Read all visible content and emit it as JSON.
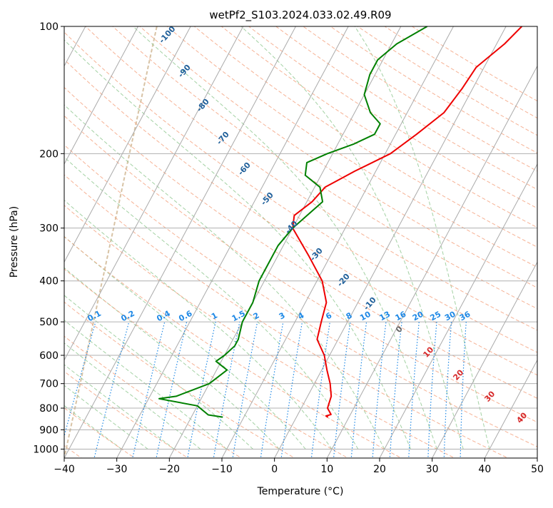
{
  "chart_data": {
    "type": "line",
    "subtype": "skew-t log-p diagram",
    "title": "wetPf2_S103.2024.033.02.49.R09",
    "xlabel": "Temperature (°C)",
    "ylabel": "Pressure (hPa)",
    "xlim": [
      -40,
      50
    ],
    "ylim": [
      1050,
      100
    ],
    "y_scale": "log",
    "grid": true,
    "x_ticks": [
      "−40",
      "−30",
      "−20",
      "−10",
      "0",
      "10",
      "20",
      "30",
      "40",
      "50"
    ],
    "y_ticks": [
      "100",
      "200",
      "300",
      "400",
      "500",
      "600",
      "700",
      "800",
      "900",
      "1000"
    ],
    "series": [
      {
        "role": "temperature",
        "color": "#ee0000",
        "points": [
          [
            6,
            840
          ],
          [
            5.5,
            835
          ],
          [
            6.3,
            828
          ],
          [
            5,
            800
          ],
          [
            4.5,
            750
          ],
          [
            3,
            700
          ],
          [
            1,
            650
          ],
          [
            -1,
            600
          ],
          [
            -4,
            550
          ],
          [
            -5,
            500
          ],
          [
            -6,
            450
          ],
          [
            -9,
            400
          ],
          [
            -14,
            350
          ],
          [
            -20,
            300
          ],
          [
            -21,
            280
          ],
          [
            -19,
            260
          ],
          [
            -18,
            240
          ],
          [
            -14,
            220
          ],
          [
            -9,
            200
          ],
          [
            -6,
            180
          ],
          [
            -3,
            160
          ],
          [
            -2,
            140
          ],
          [
            -1.5,
            125
          ],
          [
            1.5,
            110
          ],
          [
            3,
            100
          ]
        ]
      },
      {
        "role": "dewpoint",
        "color": "#008000",
        "points": [
          [
            -14,
            840
          ],
          [
            -17,
            830
          ],
          [
            -20,
            790
          ],
          [
            -28,
            760
          ],
          [
            -25,
            750
          ],
          [
            -20,
            700
          ],
          [
            -18,
            650
          ],
          [
            -21,
            620
          ],
          [
            -20,
            600
          ],
          [
            -19,
            570
          ],
          [
            -19,
            550
          ],
          [
            -20,
            500
          ],
          [
            -20,
            450
          ],
          [
            -21,
            400
          ],
          [
            -21,
            370
          ],
          [
            -21,
            330
          ],
          [
            -20,
            300
          ],
          [
            -17,
            260
          ],
          [
            -19,
            240
          ],
          [
            -23,
            225
          ],
          [
            -24,
            210
          ],
          [
            -21,
            200
          ],
          [
            -17,
            190
          ],
          [
            -14,
            180
          ],
          [
            -14,
            170
          ],
          [
            -17,
            160
          ],
          [
            -20,
            145
          ],
          [
            -21,
            130
          ],
          [
            -21,
            120
          ],
          [
            -19,
            110
          ],
          [
            -15,
            100
          ]
        ]
      }
    ],
    "dry_adiabat_labels": [
      "-100",
      "-90",
      "-80",
      "-70",
      "-60",
      "-50",
      "-40",
      "-30",
      "-20",
      "-10",
      "0",
      "10",
      "20",
      "30",
      "40"
    ],
    "mixing_ratio_labels": [
      "0.1",
      "0.2",
      "0.4",
      "0.6",
      "1",
      "1.5",
      "2",
      "3",
      "4",
      "6",
      "8",
      "10",
      "13",
      "16",
      "20",
      "25",
      "30",
      "36"
    ],
    "colors": {
      "temperature": "#ee0000",
      "dewpoint": "#008000",
      "isotherm": "#aaaaaa",
      "dry_adiabat": "#f4a582",
      "moist_adiabat": "#99cc99",
      "mixing_ratio": "#1e88e5",
      "adiabat_label_cold": "#1f5f9a",
      "adiabat_label_warm": "#d62728",
      "adiabat_label_zero": "#666666",
      "reference_curve": "#d8c3a5"
    }
  }
}
